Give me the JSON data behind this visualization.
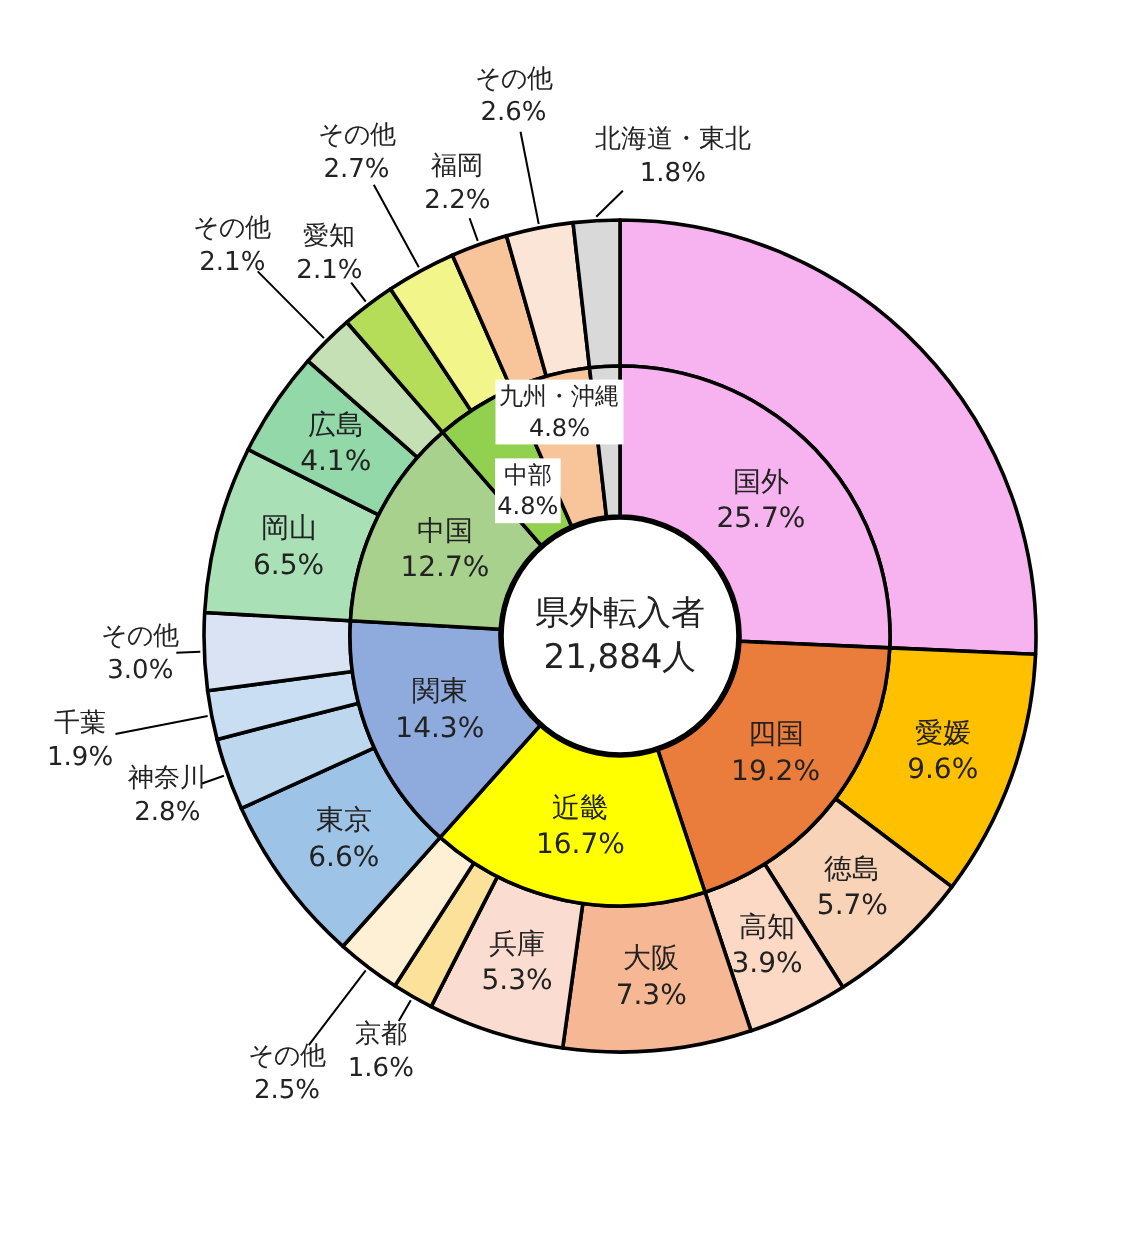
{
  "chart_data": [
    {
      "type": "donut",
      "annotations": [
        "県外転入者",
        "21,884人"
      ],
      "categories": [
        "国外",
        "四国",
        "近畿",
        "関東",
        "中国",
        "中部",
        "九州・沖縄",
        null
      ],
      "values": [
        25.7,
        19.2,
        16.7,
        14.3,
        12.7,
        4.8,
        4.8,
        1.8
      ],
      "value_labels": [
        "25.7%",
        "19.2%",
        "16.7%",
        "14.3%",
        "12.7%",
        "4.8%",
        "4.8%",
        null
      ],
      "colors": [
        "#f6b3f0",
        "#eb7d3c",
        "#ffff00",
        "#8faadc",
        "#a9d18e",
        "#92d050",
        "#f8c49a",
        "#d9d9d9"
      ]
    },
    {
      "type": "donut",
      "categories": [
        null,
        "愛媛",
        "徳島",
        "高知",
        "大阪",
        "兵庫",
        "京都",
        "その他",
        "東京",
        "神奈川",
        "千葉",
        "その他",
        "岡山",
        "広島",
        "その他",
        "愛知",
        "その他",
        "福岡",
        "その他",
        "北海道・東北"
      ],
      "values": [
        25.7,
        9.6,
        5.7,
        3.9,
        7.3,
        5.3,
        1.6,
        2.5,
        6.6,
        2.8,
        1.9,
        3.0,
        6.5,
        4.1,
        2.1,
        2.1,
        2.7,
        2.2,
        2.6,
        1.8
      ],
      "value_labels": [
        null,
        "9.6%",
        "5.7%",
        "3.9%",
        "7.3%",
        "5.3%",
        "1.6%",
        "2.5%",
        "6.6%",
        "2.8%",
        "1.9%",
        "3.0%",
        "6.5%",
        "4.1%",
        "2.1%",
        "2.1%",
        "2.7%",
        "2.2%",
        "2.6%",
        "1.8%"
      ],
      "colors": [
        "#f6b3f0",
        "#ffc000",
        "#f9d3b8",
        "#fbd9c4",
        "#f6b894",
        "#fbdcd0",
        "#fbe19a",
        "#fdf0d5",
        "#9dc3e6",
        "#bdd7ee",
        "#c9def2",
        "#dae3f3",
        "#a9e0b5",
        "#93d8a8",
        "#c5e0b4",
        "#b5dd5a",
        "#f2f58a",
        "#f8c49a",
        "#fbe5d6",
        "#d9d9d9"
      ]
    }
  ]
}
